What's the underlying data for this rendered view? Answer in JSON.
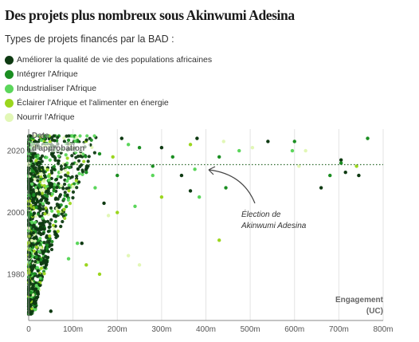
{
  "title": "Des projets plus nombreux sous Akinwumi Adesina",
  "subtitle": "Types de projets financés par la BAD :",
  "chart_data": {
    "type": "scatter",
    "title": "Des projets plus nombreux sous Akinwumi Adesina",
    "subtitle": "Types de projets financés par la BAD :",
    "xlabel_line1": "Engagement",
    "xlabel_line2": "(UC)",
    "ylabel_line1": "Date",
    "ylabel_line2": "d'approbation",
    "xlim": [
      0,
      800000000
    ],
    "ylim": [
      1965,
      2027
    ],
    "x_ticks": [
      {
        "value": 0,
        "label": "0"
      },
      {
        "value": 100000000,
        "label": "100m"
      },
      {
        "value": 200000000,
        "label": "200m"
      },
      {
        "value": 300000000,
        "label": "300m"
      },
      {
        "value": 400000000,
        "label": "400m"
      },
      {
        "value": 500000000,
        "label": "500m"
      },
      {
        "value": 600000000,
        "label": "600m"
      },
      {
        "value": 700000000,
        "label": "700m"
      },
      {
        "value": 800000000,
        "label": "800m"
      }
    ],
    "y_ticks": [
      {
        "value": 1980,
        "label": "1980"
      },
      {
        "value": 2000,
        "label": "2000"
      },
      {
        "value": 2020,
        "label": "2020"
      }
    ],
    "grid": "vertical",
    "reference_line": {
      "y": 2015.5,
      "label_line1": "Élection de",
      "label_line2": "Akinwumi Adesina"
    },
    "series": [
      {
        "name": "Améliorer la qualité de vie des populations africaines",
        "color": "#0e3a12",
        "points": [
          [
            380000000,
            2024
          ],
          [
            540000000,
            2023
          ],
          [
            705000000,
            2017
          ],
          [
            715000000,
            2013
          ],
          [
            745000000,
            2012
          ],
          [
            660000000,
            2008
          ],
          [
            345000000,
            2012
          ],
          [
            365000000,
            2007
          ],
          [
            300000000,
            2021
          ],
          [
            210000000,
            2024
          ],
          [
            170000000,
            2003
          ],
          [
            120000000,
            1990
          ],
          [
            50000000,
            1968
          ]
        ]
      },
      {
        "name": "Intégrer l'Afrique",
        "color": "#1b8e22",
        "points": [
          [
            765000000,
            2024
          ],
          [
            705000000,
            2016
          ],
          [
            680000000,
            2012
          ],
          [
            600000000,
            2023
          ],
          [
            430000000,
            2018
          ],
          [
            445000000,
            2008
          ],
          [
            250000000,
            2021
          ],
          [
            280000000,
            2015
          ],
          [
            325000000,
            2018
          ],
          [
            160000000,
            2019
          ],
          [
            130000000,
            2013
          ],
          [
            200000000,
            2012
          ]
        ]
      },
      {
        "name": "Industrialiser l'Afrique",
        "color": "#5bd65b",
        "points": [
          [
            475000000,
            2020
          ],
          [
            595000000,
            2020
          ],
          [
            375000000,
            2014
          ],
          [
            385000000,
            2005
          ],
          [
            280000000,
            2012
          ],
          [
            225000000,
            2022
          ],
          [
            150000000,
            2008
          ],
          [
            110000000,
            1990
          ],
          [
            90000000,
            1985
          ],
          [
            240000000,
            2002
          ]
        ]
      },
      {
        "name": "Éclairer l'Afrique et l'alimenter en énergie",
        "color": "#9bd61e",
        "points": [
          [
            740000000,
            2015
          ],
          [
            430000000,
            1991
          ],
          [
            365000000,
            2022
          ],
          [
            300000000,
            2005
          ],
          [
            200000000,
            2000
          ],
          [
            160000000,
            1980
          ],
          [
            80000000,
            2001
          ],
          [
            130000000,
            1983
          ],
          [
            190000000,
            2018
          ]
        ]
      },
      {
        "name": "Nourrir l'Afrique",
        "color": "#e2f7b6",
        "points": [
          [
            625000000,
            2020
          ],
          [
            505000000,
            2021
          ],
          [
            250000000,
            1983
          ],
          [
            180000000,
            1999
          ],
          [
            225000000,
            1986
          ],
          [
            610000000,
            2015
          ],
          [
            440000000,
            2023
          ]
        ]
      }
    ]
  }
}
